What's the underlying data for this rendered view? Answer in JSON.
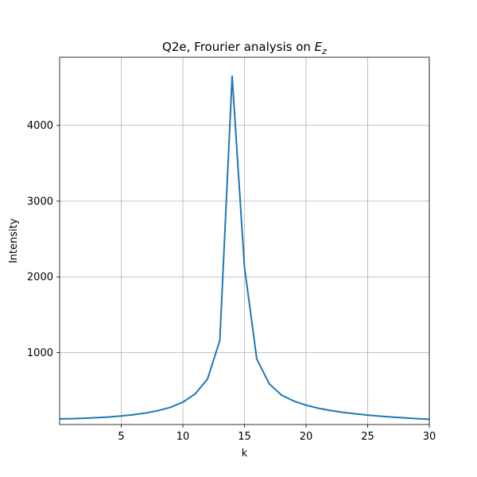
{
  "chart_data": {
    "type": "line",
    "title_main": "Q2e, Frourier analysis on ",
    "title_symbol": "E",
    "title_subscript": "z",
    "xlabel": "k",
    "ylabel": "Intensity",
    "xlim": [
      0,
      30
    ],
    "ylim": [
      50,
      4900
    ],
    "grid": true,
    "xticks": [
      5,
      10,
      15,
      20,
      25,
      30
    ],
    "yticks": [
      1000,
      2000,
      3000,
      4000
    ],
    "series": [
      {
        "color": "#1f77b4",
        "x": [
          0,
          1,
          2,
          3,
          4,
          5,
          6,
          7,
          8,
          9,
          10,
          11,
          12,
          13,
          14,
          15,
          16,
          17,
          18,
          19,
          20,
          21,
          22,
          23,
          24,
          25,
          26,
          27,
          28,
          29,
          30
        ],
        "y": [
          125,
          128,
          133,
          140,
          150,
          163,
          180,
          203,
          234,
          278,
          345,
          455,
          650,
          1160,
          4650,
          2130,
          915,
          590,
          440,
          360,
          305,
          265,
          235,
          210,
          192,
          175,
          160,
          148,
          138,
          128,
          120
        ]
      }
    ]
  }
}
